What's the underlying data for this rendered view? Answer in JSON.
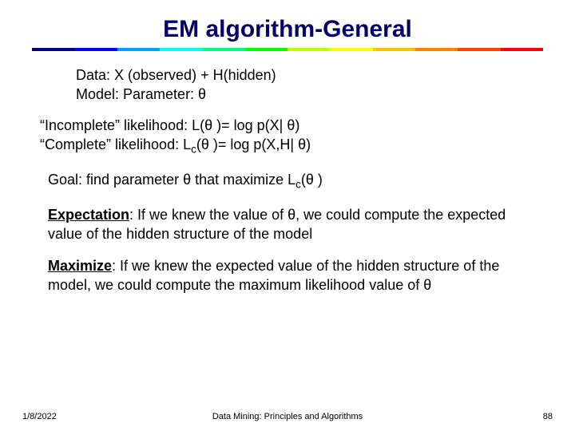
{
  "title": "EM algorithm-General",
  "rainbow_colors": [
    "#000080",
    "#0000ff",
    "#00a0ff",
    "#00ffff",
    "#00ff80",
    "#00ff00",
    "#c0ff00",
    "#ffff00",
    "#ffc000",
    "#ff8000",
    "#ff4000",
    "#ff0000"
  ],
  "block1": {
    "line1": "Data:  X (observed) + H(hidden)",
    "line2": "Model: Parameter: θ"
  },
  "block2": {
    "line1": "“Incomplete” likelihood: L(θ )= log p(X| θ)",
    "line2_a": "“Complete” likelihood: L",
    "line2_sub": "c",
    "line2_b": "(θ )= log p(X,H| θ)"
  },
  "block3": {
    "a": "Goal: find parameter θ that maximize L",
    "sub": "c",
    "b": "(θ )"
  },
  "block4": {
    "bold": "Expectation",
    "rest": ": If we knew the value of θ, we could compute the expected value of the hidden structure of the model"
  },
  "block5": {
    "bold": "Maximize",
    "rest": ": If we knew the expected value of the hidden structure of the model, we could compute the maximum likelihood value of θ"
  },
  "footer": {
    "date": "1/8/2022",
    "center": "Data Mining: Principles and Algorithms",
    "page": "88"
  }
}
